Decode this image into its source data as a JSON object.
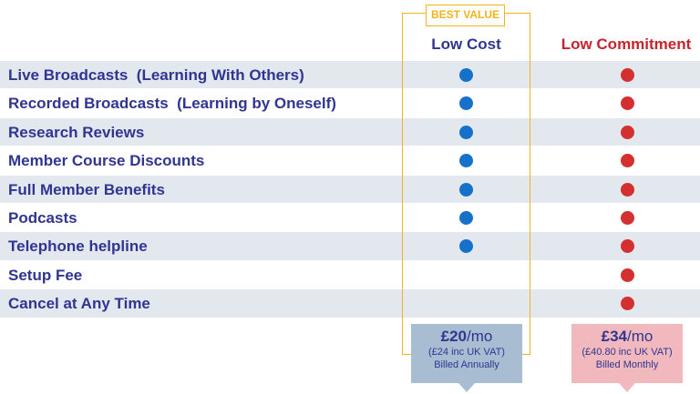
{
  "badge": {
    "text": "BEST VALUE",
    "color": "#f2b41b"
  },
  "columns": {
    "low_cost": "Low Cost",
    "low_commitment": "Low Commitment"
  },
  "features": [
    {
      "label": "Live Broadcasts  (Learning With Others)",
      "low_cost": true,
      "low_commitment": true
    },
    {
      "label": "Recorded Broadcasts  (Learning by Oneself)",
      "low_cost": true,
      "low_commitment": true
    },
    {
      "label": "Research Reviews",
      "low_cost": true,
      "low_commitment": true
    },
    {
      "label": "Member Course Discounts",
      "low_cost": true,
      "low_commitment": true
    },
    {
      "label": "Full Member Benefits",
      "low_cost": true,
      "low_commitment": true
    },
    {
      "label": "Podcasts",
      "low_cost": true,
      "low_commitment": true
    },
    {
      "label": "Telephone helpline",
      "low_cost": true,
      "low_commitment": true
    },
    {
      "label": "Setup Fee",
      "low_cost": false,
      "low_commitment": true
    },
    {
      "label": "Cancel at Any Time",
      "low_cost": false,
      "low_commitment": true
    }
  ],
  "pricing": {
    "annual": {
      "amount": "£20",
      "unit": "/mo",
      "vat": "(£24 inc UK VAT)",
      "billing": "Billed Annually"
    },
    "monthly": {
      "amount": "£34",
      "unit": "/mo",
      "vat": "(£40.80 inc UK VAT)",
      "billing": "Billed Monthly"
    }
  },
  "icons": {
    "included_low_cost": "blue-dot-icon",
    "included_low_commitment": "red-dot-icon"
  },
  "colors": {
    "label_text": "#2f3591",
    "low_cost_dot": "#1571c9",
    "low_commitment_dot": "#d3302f",
    "low_commitment_heading": "#c8232d",
    "row_shade": "#e3e8ef",
    "annual_card": "#a8bdd1",
    "monthly_card": "#f1b8be"
  }
}
